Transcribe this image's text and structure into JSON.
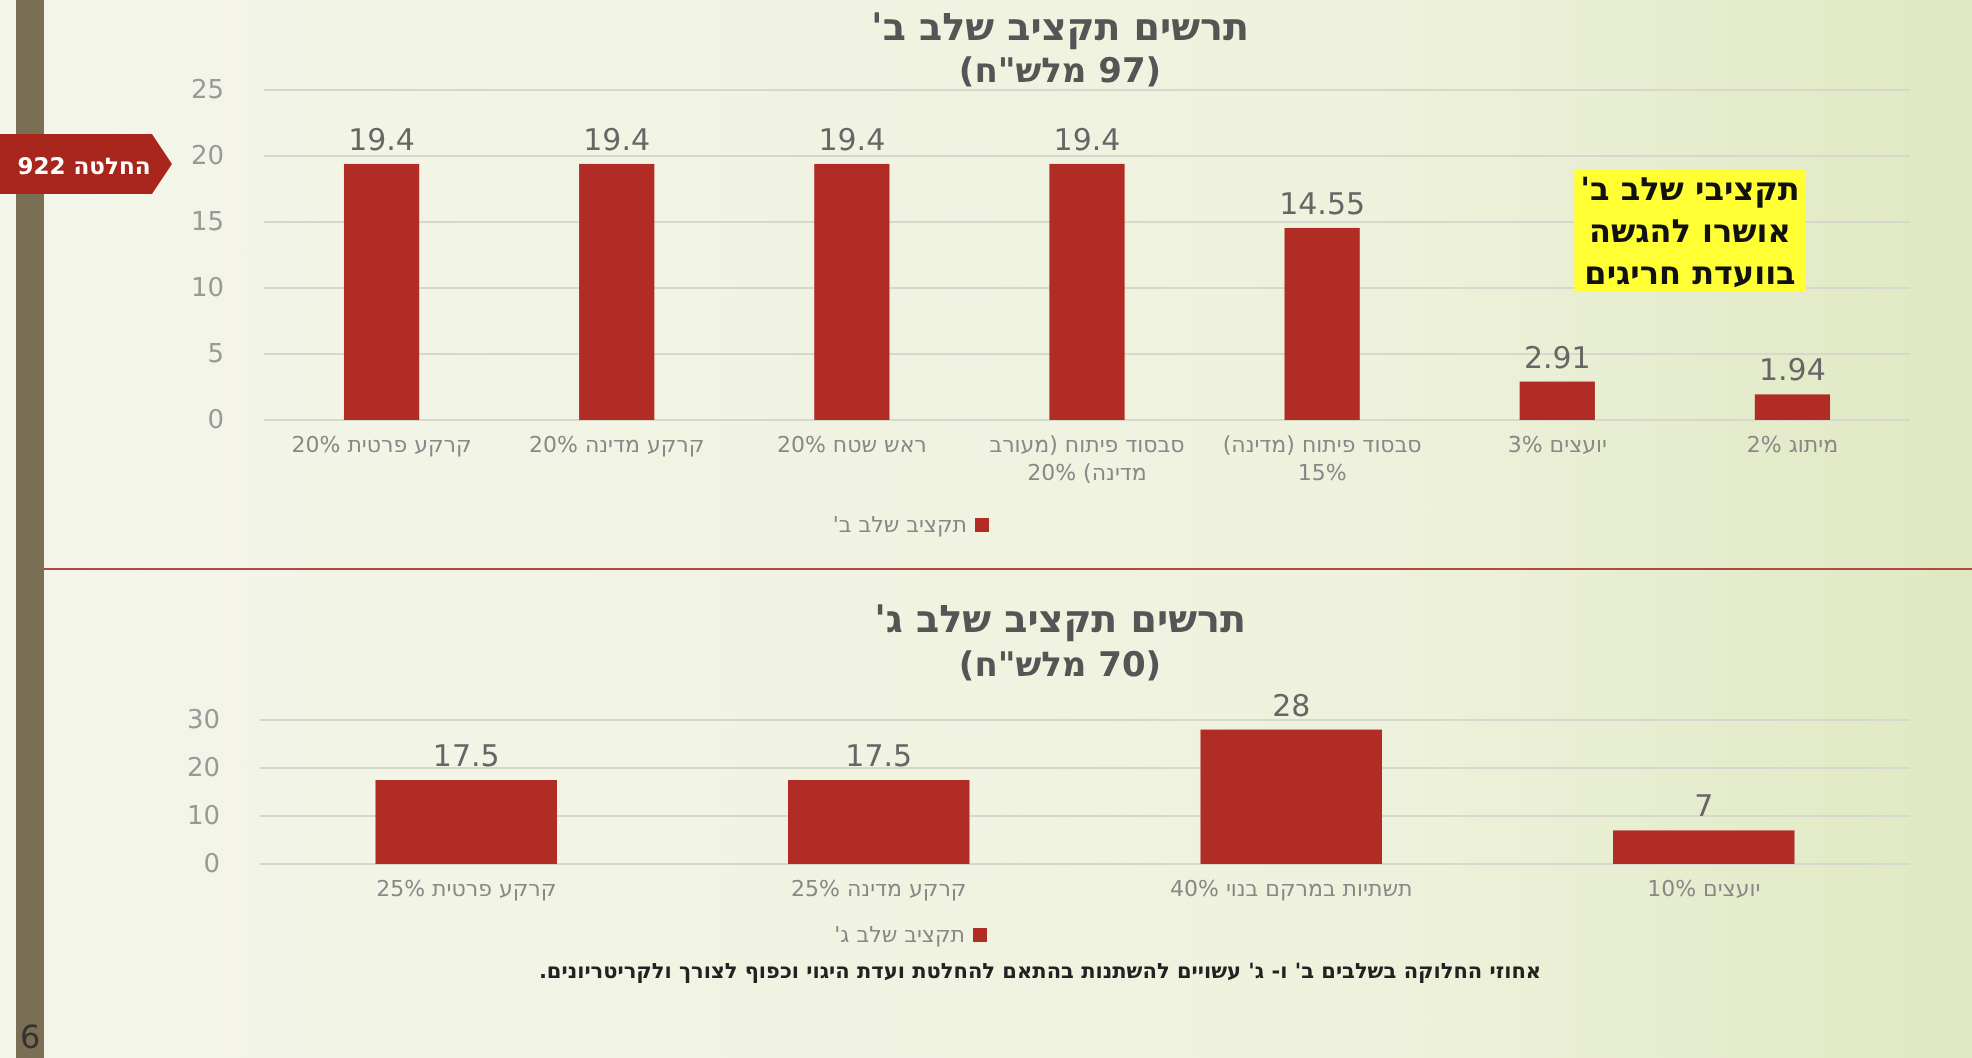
{
  "chart_data": [
    {
      "type": "bar",
      "title": "תרשים תקציב שלב ב'",
      "subtitle": "(97 מלש\"ח)",
      "categories": [
        "קרקע פרטית 20%",
        "קרקע מדינה 20%",
        "ראש שטח 20%",
        "סבסוד פיתוח (מעורב מדינה) 20%",
        "סבסוד פיתוח (מדינה) 15%",
        "יועצים 3%",
        "מיתוג 2%"
      ],
      "series": [
        {
          "name": "תקציב שלב ב'",
          "color": "#b02c24",
          "values": [
            19.4,
            19.4,
            19.4,
            19.4,
            14.55,
            2.91,
            1.94
          ]
        }
      ],
      "ylim": [
        0,
        25
      ],
      "yticks": [
        0,
        5,
        10,
        15,
        20,
        25
      ],
      "grid": "y",
      "legend": "bottom",
      "data_labels": true,
      "annotations": [
        "החלטה 922",
        "תקציבי שלב ב' אושרו להגשה בוועדת חריגים"
      ]
    },
    {
      "type": "bar",
      "title": "תרשים תקציב שלב ג'",
      "subtitle": "(70 מלש\"ח)",
      "categories": [
        "קרקע פרטית 25%",
        "קרקע מדינה 25%",
        "תשתיות במרקם בנוי 40%",
        "יועצים 10%"
      ],
      "series": [
        {
          "name": "תקציב שלב ג'",
          "color": "#b02c24",
          "values": [
            17.5,
            17.5,
            28,
            7
          ]
        }
      ],
      "ylim": [
        0,
        30
      ],
      "yticks": [
        0,
        10,
        20,
        30
      ],
      "grid": "y",
      "legend": "bottom",
      "data_labels": true,
      "annotations": [
        "אחוזי החלוקה בשלבים ב' ו- ג' עשויים להשתנות בהתאם להחלטת ועדת היגוי וכפוף לצורך ולקריטריונים.",
        "6"
      ]
    }
  ]
}
